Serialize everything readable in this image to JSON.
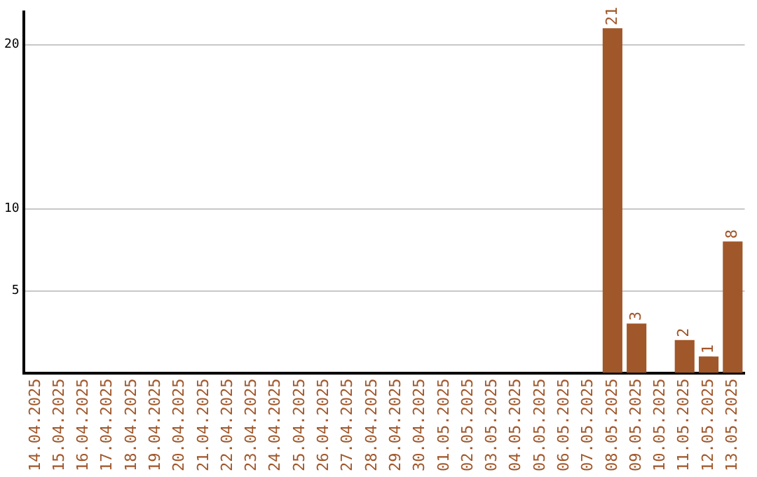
{
  "chart_data": {
    "type": "bar",
    "categories": [
      "14.04.2025",
      "15.04.2025",
      "16.04.2025",
      "17.04.2025",
      "18.04.2025",
      "19.04.2025",
      "20.04.2025",
      "21.04.2025",
      "22.04.2025",
      "23.04.2025",
      "24.04.2025",
      "25.04.2025",
      "26.04.2025",
      "27.04.2025",
      "28.04.2025",
      "29.04.2025",
      "30.04.2025",
      "01.05.2025",
      "02.05.2025",
      "03.05.2025",
      "04.05.2025",
      "05.05.2025",
      "06.05.2025",
      "07.05.2025",
      "08.05.2025",
      "09.05.2025",
      "10.05.2025",
      "11.05.2025",
      "12.05.2025",
      "13.05.2025"
    ],
    "values": [
      0,
      0,
      0,
      0,
      0,
      0,
      0,
      0,
      0,
      0,
      0,
      0,
      0,
      0,
      0,
      0,
      0,
      0,
      0,
      0,
      0,
      0,
      0,
      0,
      21,
      3,
      0,
      2,
      1,
      8
    ],
    "value_labels": [
      null,
      null,
      null,
      null,
      null,
      null,
      null,
      null,
      null,
      null,
      null,
      null,
      null,
      null,
      null,
      null,
      null,
      null,
      null,
      null,
      null,
      null,
      null,
      null,
      "21",
      "3",
      null,
      "2",
      "1",
      "8"
    ],
    "color": "#a0572a",
    "ylim": [
      0,
      22
    ],
    "yticks": [
      5,
      10,
      20
    ],
    "grid": "y"
  }
}
